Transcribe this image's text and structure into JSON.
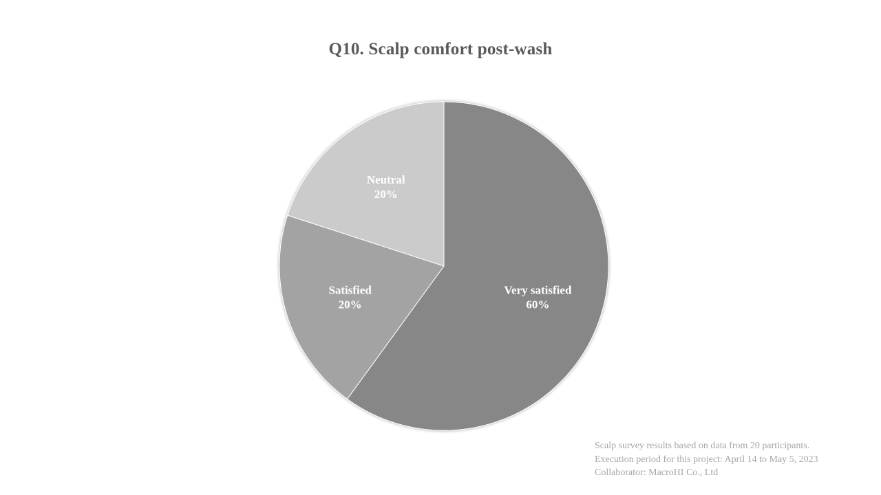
{
  "chart_data": {
    "type": "pie",
    "title": "Q10. Scalp comfort post-wash",
    "categories": [
      "Very satisfied",
      "Satisfied",
      "Neutral"
    ],
    "values": [
      60,
      20,
      20
    ],
    "value_labels": [
      "60%",
      "20%",
      "20%"
    ],
    "colors": [
      "#878787",
      "#a3a3a3",
      "#cbcbcb"
    ],
    "start": "12 o'clock, clockwise",
    "legend": "none (labels inside slices)"
  },
  "footnote": {
    "line1": "Scalp survey results based on data from 20 participants.",
    "line2": "Execution period for this project: April 14 to May 5, 2023",
    "line3": "Collaborator: MacroHI Co., Ltd"
  }
}
